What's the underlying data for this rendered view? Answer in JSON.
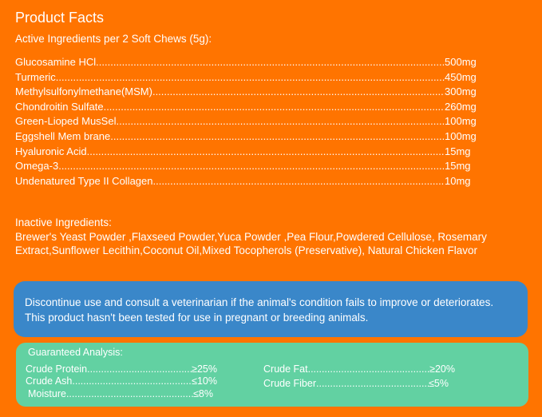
{
  "title": "Product Facts",
  "active_heading": "Active Ingredients per 2 Soft Chews (5g):",
  "active": [
    {
      "name": "Glucosamine HCl",
      "value": "500mg"
    },
    {
      "name": "Turmeric",
      "value": "450mg"
    },
    {
      "name": "Methylsulfonylmethane(MSM)",
      "value": "300mg"
    },
    {
      "name": "Chondroitin Sulfate ",
      "value": "260mg"
    },
    {
      "name": "Green-Lioped MusSel",
      "value": "100mg"
    },
    {
      "name": "Eggshell Mem brane",
      "value": "100mg"
    },
    {
      "name": "Hyaluronic Acid",
      "value": "15mg"
    },
    {
      "name": "Omega-3",
      "value": "15mg"
    },
    {
      "name": "Undenatured Type II Collagen",
      "value": "10mg"
    }
  ],
  "inactive_heading": "Inactive Ingredients:",
  "inactive_text": "Brewer's Yeast Powder ,Flaxseed Powder,Yuca Powder ,Pea Flour,Powdered Cellulose, Rosemary Extract,Sunflower Lecithin,Coconut Oil,Mixed Tocopherols (Preservative), Natural Chicken Flavor",
  "warning": "Discontinue use and consult a veterinarian if the animal's condition fails to improve or deteriorates. This product hasn't been tested for use in pregnant or breeding animals.",
  "analysis": {
    "heading": "Guaranteed Analysis:",
    "items": [
      {
        "name": "Crude Protein",
        "value": "≥25%"
      },
      {
        "name": "Crude Ash",
        "value": "≤10%"
      },
      {
        "name": "Moisture",
        "value": "≤8%"
      },
      {
        "name": "Crude Fat",
        "value": "≥20%"
      },
      {
        "name": "Crude Fiber",
        "value": "≤5%"
      }
    ]
  }
}
